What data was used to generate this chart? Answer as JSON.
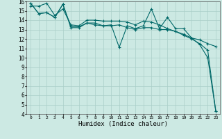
{
  "xlabel": "Humidex (Indice chaleur)",
  "bg_color": "#cce9e3",
  "grid_color": "#aacfc8",
  "line_color": "#006868",
  "xmin": 0,
  "xmax": 23,
  "ymin": 4,
  "ymax": 16,
  "line1_x": [
    0,
    1,
    2,
    3,
    4,
    5,
    6,
    7,
    8,
    9,
    10,
    11,
    12,
    13,
    14,
    15,
    16,
    17,
    18,
    19,
    20,
    21,
    22,
    23
  ],
  "line1_y": [
    15.8,
    14.7,
    14.8,
    14.3,
    15.7,
    13.3,
    13.3,
    13.7,
    13.7,
    13.4,
    13.5,
    11.1,
    13.4,
    13.1,
    13.4,
    15.2,
    13.1,
    14.3,
    13.1,
    13.1,
    12.1,
    11.4,
    10.0,
    4.3
  ],
  "line2_x": [
    0,
    1,
    2,
    3,
    4,
    5,
    6,
    7,
    8,
    9,
    10,
    11,
    12,
    13,
    14,
    15,
    16,
    17,
    18,
    19,
    20,
    21,
    22,
    23
  ],
  "line2_y": [
    15.5,
    15.5,
    15.8,
    14.5,
    15.2,
    13.5,
    13.4,
    14.0,
    14.0,
    13.9,
    13.9,
    13.9,
    13.8,
    13.5,
    13.9,
    13.8,
    13.5,
    13.1,
    12.8,
    12.5,
    12.1,
    11.9,
    11.5,
    11.2
  ],
  "line3_x": [
    0,
    1,
    2,
    3,
    4,
    5,
    6,
    7,
    8,
    9,
    10,
    11,
    12,
    13,
    14,
    15,
    16,
    17,
    18,
    19,
    20,
    21,
    22,
    23
  ],
  "line3_y": [
    15.8,
    14.7,
    14.8,
    14.3,
    15.7,
    13.2,
    13.2,
    13.7,
    13.5,
    13.4,
    13.4,
    13.5,
    13.2,
    13.0,
    13.2,
    13.2,
    13.0,
    13.0,
    12.8,
    12.4,
    12.0,
    11.5,
    10.8,
    4.3
  ]
}
